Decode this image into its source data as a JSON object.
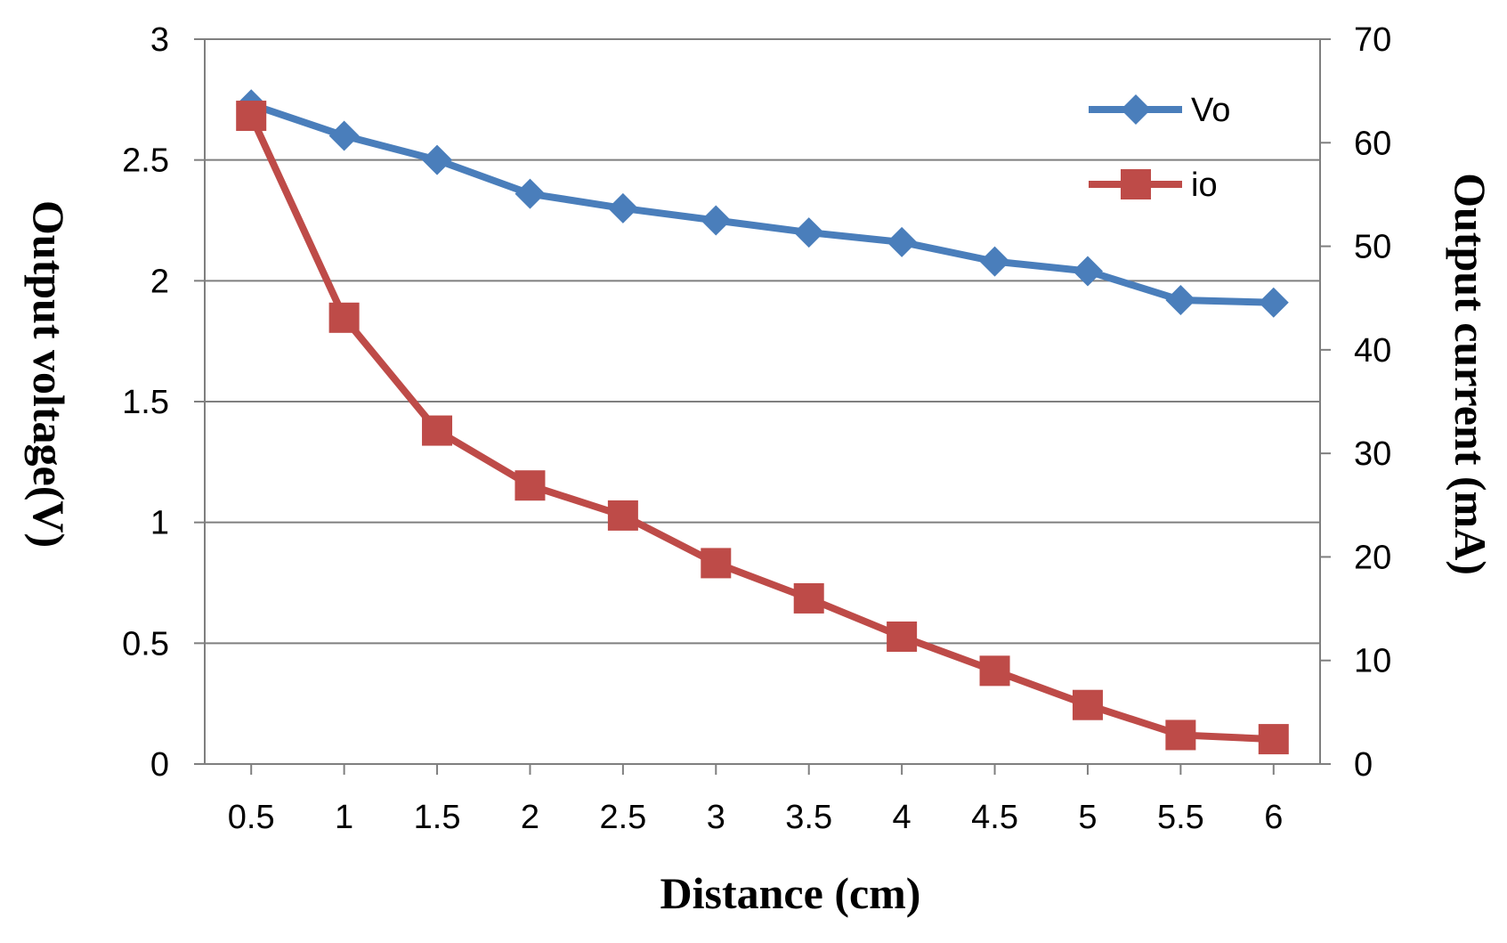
{
  "chart_data": {
    "type": "line",
    "title": "",
    "xlabel": "Distance (cm)",
    "ylabel": "Output voltage(V)",
    "y2label": "Output current (mA)",
    "categories": [
      "0.5",
      "1",
      "1.5",
      "2",
      "2.5",
      "3",
      "3.5",
      "4",
      "4.5",
      "5",
      "5.5",
      "6"
    ],
    "ylim": [
      0,
      3
    ],
    "y2lim": [
      0,
      70
    ],
    "yticks": [
      "0",
      "0.5",
      "1",
      "1.5",
      "2",
      "2.5",
      "3"
    ],
    "y2ticks": [
      "0",
      "10",
      "20",
      "30",
      "40",
      "50",
      "60",
      "70"
    ],
    "grid": true,
    "legend_position": "top-right",
    "series": [
      {
        "name": "Vo",
        "axis": "left",
        "marker": "diamond",
        "color": "#4a7ebb",
        "values": [
          2.73,
          2.6,
          2.5,
          2.36,
          2.3,
          2.25,
          2.2,
          2.16,
          2.08,
          2.04,
          1.92,
          1.91
        ]
      },
      {
        "name": "io",
        "axis": "right",
        "marker": "square",
        "color": "#be4b48",
        "values": [
          62.6,
          43.1,
          32.2,
          26.9,
          24.0,
          19.4,
          16.0,
          12.3,
          9.0,
          5.7,
          2.8,
          2.4
        ]
      }
    ]
  }
}
